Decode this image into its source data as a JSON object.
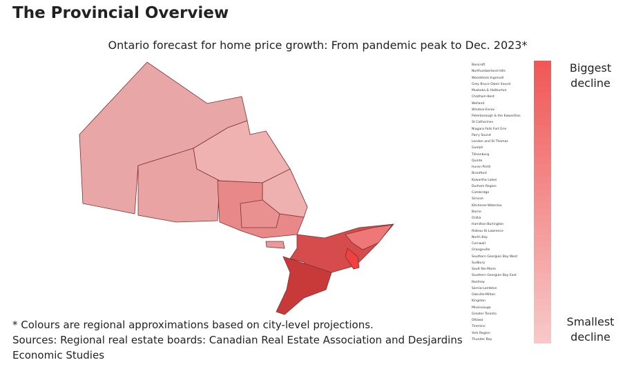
{
  "header": {
    "title": "The Provincial Overview"
  },
  "map": {
    "subtitle": "Ontario forecast for home price growth: From pandemic peak to Dec. 2023*"
  },
  "legend": {
    "top_label": "Biggest decline",
    "bottom_label": "Smallest decline",
    "regions": [
      "Bancroft",
      "Northumberland Hills",
      "Woodstock-Ingersoll",
      "Grey Bruce Owen Sound",
      "Muskoka & Haliburton",
      "Chatham-Kent",
      "Welland",
      "Windsor-Essex",
      "Peterborough & the Kawarthas",
      "St Catharines",
      "Niagara Falls Fort Erie",
      "Parry Sound",
      "London and St Thomas",
      "Guelph",
      "Tillsonburg",
      "Quinte",
      "Huron Perth",
      "Brantford",
      "Kawartha Lakes",
      "Durham Region",
      "Cambridge",
      "Simcoe",
      "Kitchener-Waterloo",
      "Barrie",
      "Orillia",
      "Hamilton-Burlington",
      "Rideau-St Lawrence",
      "North Bay",
      "Cornwall",
      "Orangeville",
      "Southern Georgian Bay West",
      "Sudbury",
      "Sault Ste Marie",
      "Southern Georgian Bay East",
      "Renfrew",
      "Sarnia-Lambton",
      "Oakville-Milton",
      "Kingston",
      "Mississauga",
      "Greater Toronto",
      "Ottawa",
      "Timmins",
      "York Region",
      "Thunder Bay"
    ]
  },
  "footnotes": {
    "note": "* Colours are regional approximations based on city-level projections.",
    "sources": "Sources: Regional real estate boards: Canadian Real Estate Association and Desjardins Economic Studies"
  }
}
